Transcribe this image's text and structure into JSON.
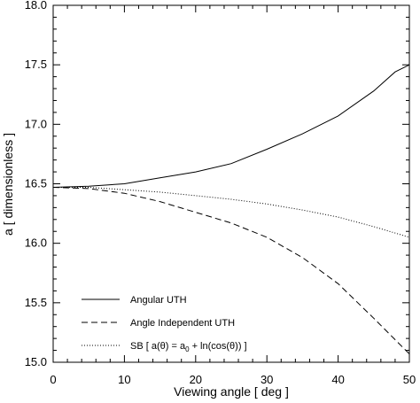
{
  "chart_data": {
    "type": "line",
    "xlabel": "Viewing angle [ deg ]",
    "ylabel": "a [ dimensionless ]",
    "xlim": [
      0,
      50
    ],
    "ylim": [
      15.0,
      18.0
    ],
    "x_ticks": [
      0,
      10,
      20,
      30,
      40,
      50
    ],
    "y_ticks": [
      15.0,
      15.5,
      16.0,
      16.5,
      17.0,
      17.5,
      18.0
    ],
    "x_tick_labels": [
      "0",
      "10",
      "20",
      "30",
      "40",
      "50"
    ],
    "y_tick_labels": [
      "15.0",
      "15.5",
      "16.0",
      "16.5",
      "17.0",
      "17.5",
      "18.0"
    ],
    "grid": false,
    "legend_position": "bottom-left",
    "series": [
      {
        "name": "Angular UTH",
        "style": "solid",
        "x": [
          0,
          5,
          10,
          15,
          20,
          25,
          30,
          35,
          40,
          45,
          48,
          50
        ],
        "y": [
          16.47,
          16.48,
          16.5,
          16.55,
          16.6,
          16.67,
          16.79,
          16.92,
          17.07,
          17.28,
          17.44,
          17.5
        ]
      },
      {
        "name": "Angle Independent UTH",
        "style": "dashed",
        "x": [
          0,
          5,
          10,
          15,
          20,
          25,
          30,
          35,
          40,
          45,
          50
        ],
        "y": [
          16.47,
          16.46,
          16.42,
          16.35,
          16.26,
          16.17,
          16.05,
          15.88,
          15.66,
          15.37,
          15.07
        ]
      },
      {
        "name": "SB [ a(θ) = a₀ + ln(cos(θ)) ]",
        "style": "dotted",
        "x": [
          0,
          5,
          10,
          15,
          20,
          25,
          30,
          35,
          40,
          45,
          50
        ],
        "y": [
          16.47,
          16.47,
          16.45,
          16.43,
          16.4,
          16.37,
          16.33,
          16.28,
          16.22,
          16.14,
          16.05
        ]
      }
    ],
    "legend": {
      "entries": [
        "Angular UTH",
        "Angle Independent UTH"
      ],
      "sb_prefix": "SB [ a(θ) = a",
      "sb_subscript": "0",
      "sb_suffix": " + ln(cos(θ)) ]"
    }
  }
}
